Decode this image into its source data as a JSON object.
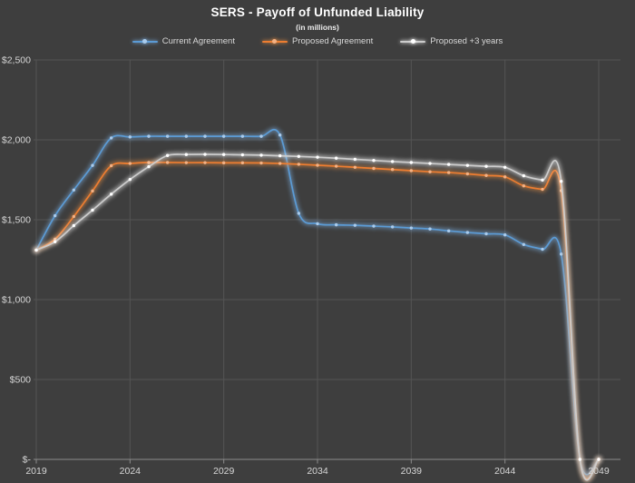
{
  "colors": {
    "background": "#3E3E3E",
    "gridline": "#545454",
    "axis_line": "#8C8C8C",
    "axis_text": "#D6D6D6",
    "title_text": "#FFFFFF",
    "subtitle_text": "#EDEDED",
    "legend_text": "#D9D9D9"
  },
  "chart_data": {
    "type": "line",
    "title": "SERS - Payoff of Unfunded Liability",
    "subtitle": "(in millions)",
    "line_style": "smoothed, round markers, outer glow",
    "grid": true,
    "legend_position": "top",
    "xlim": [
      2019,
      2049
    ],
    "ylim": [
      0,
      2500
    ],
    "xticks": [
      2019,
      2024,
      2029,
      2034,
      2039,
      2044,
      2049
    ],
    "xtick_labels": [
      "2019",
      "2024",
      "2029",
      "2034",
      "2039",
      "2044",
      "2049"
    ],
    "yticks": [
      0,
      500,
      1000,
      1500,
      2000,
      2500
    ],
    "ytick_labels": [
      "$-",
      "$500",
      "$1,000",
      "$1,500",
      "$2,000",
      "$2,500"
    ],
    "x": [
      2019,
      2020,
      2021,
      2022,
      2023,
      2024,
      2025,
      2026,
      2027,
      2028,
      2029,
      2030,
      2031,
      2032,
      2033,
      2034,
      2035,
      2036,
      2037,
      2038,
      2039,
      2040,
      2041,
      2042,
      2043,
      2044,
      2045,
      2046,
      2047,
      2048,
      2049
    ],
    "series": [
      {
        "name": "Current Agreement",
        "color": "#5B9BD5",
        "marker_color": "#A9CBEC",
        "glow_color": "#7FB2E5",
        "values": [
          1310,
          1525,
          1686,
          1840,
          2012,
          2018,
          2022,
          2022,
          2022,
          2022,
          2022,
          2022,
          2022,
          2030,
          1540,
          1475,
          1468,
          1465,
          1460,
          1455,
          1448,
          1442,
          1430,
          1420,
          1412,
          1405,
          1345,
          1315,
          1285,
          0,
          0
        ]
      },
      {
        "name": "Proposed Agreement",
        "color": "#ED7D31",
        "marker_color": "#F4B183",
        "glow_color": "#F09344",
        "values": [
          1310,
          1378,
          1520,
          1680,
          1838,
          1852,
          1858,
          1858,
          1857,
          1857,
          1856,
          1856,
          1855,
          1852,
          1847,
          1841,
          1835,
          1828,
          1821,
          1814,
          1807,
          1800,
          1795,
          1787,
          1777,
          1768,
          1712,
          1690,
          1682,
          0,
          0
        ]
      },
      {
        "name": "Proposed +3 years",
        "color": "#CCCCCC",
        "marker_color": "#FFFFFF",
        "glow_color": "#FFFFFF",
        "values": [
          1310,
          1362,
          1463,
          1560,
          1660,
          1752,
          1832,
          1902,
          1908,
          1909,
          1908,
          1906,
          1904,
          1900,
          1896,
          1891,
          1885,
          1878,
          1871,
          1864,
          1858,
          1852,
          1846,
          1840,
          1834,
          1828,
          1775,
          1748,
          1740,
          0,
          0
        ]
      }
    ]
  }
}
